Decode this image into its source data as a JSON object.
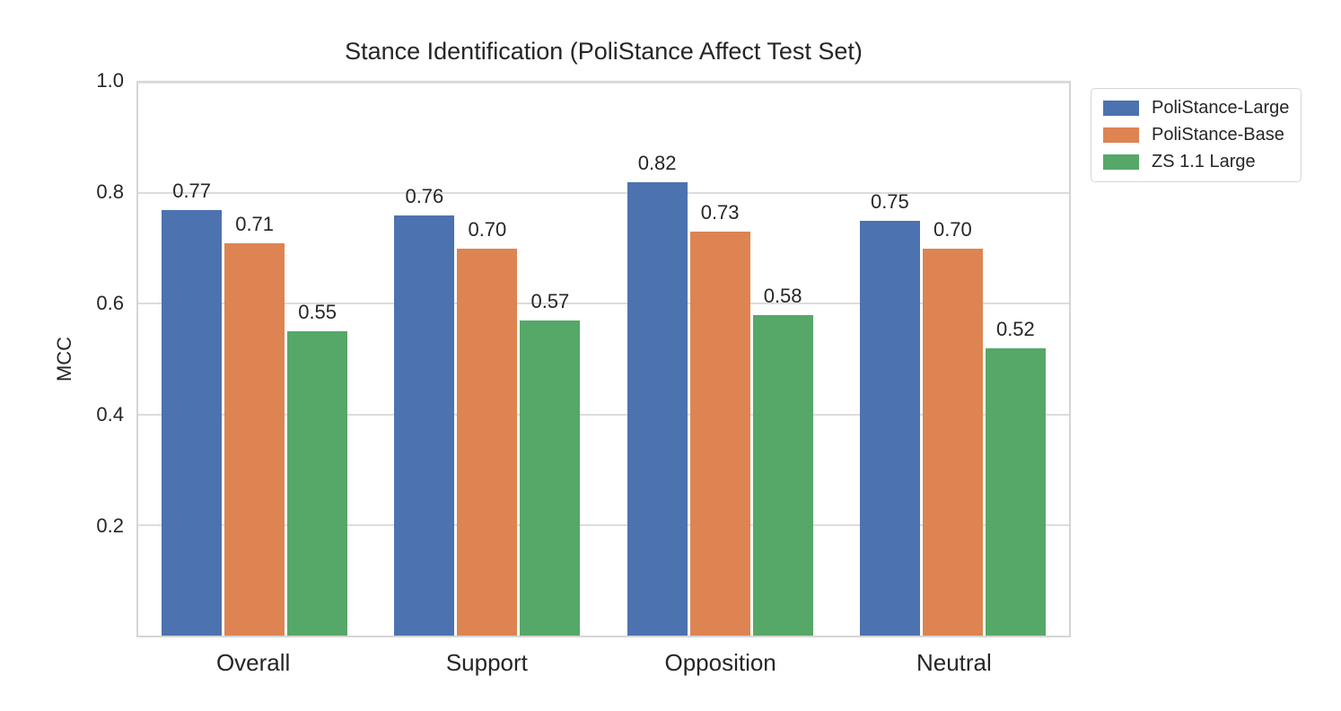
{
  "chart_data": {
    "type": "bar",
    "title": "Stance Identification (PoliStance Affect Test Set)",
    "xlabel": "",
    "ylabel": "MCC",
    "categories": [
      "Overall",
      "Support",
      "Opposition",
      "Neutral"
    ],
    "series": [
      {
        "name": "PoliStance-Large",
        "color": "#4C72B0",
        "values": [
          0.77,
          0.76,
          0.82,
          0.75
        ],
        "labels": [
          "0.77",
          "0.76",
          "0.82",
          "0.75"
        ]
      },
      {
        "name": "PoliStance-Base",
        "color": "#DD8452",
        "values": [
          0.71,
          0.7,
          0.73,
          0.7
        ],
        "labels": [
          "0.71",
          "0.70",
          "0.73",
          "0.70"
        ]
      },
      {
        "name": "ZS 1.1 Large",
        "color": "#55A868",
        "values": [
          0.55,
          0.57,
          0.58,
          0.52
        ],
        "labels": [
          "0.55",
          "0.57",
          "0.58",
          "0.52"
        ]
      }
    ],
    "ylim": [
      0,
      1.0
    ],
    "yticks": [
      {
        "value": 0.2,
        "label": "0.2"
      },
      {
        "value": 0.4,
        "label": "0.4"
      },
      {
        "value": 0.6,
        "label": "0.6"
      },
      {
        "value": 0.8,
        "label": "0.8"
      },
      {
        "value": 1.0,
        "label": "1.0"
      }
    ],
    "grid": true,
    "legend_position": "outside-upper-right",
    "colors": {
      "grid": "#dcdcdc",
      "spine": "#d5d5d5",
      "text": "#262626"
    }
  }
}
